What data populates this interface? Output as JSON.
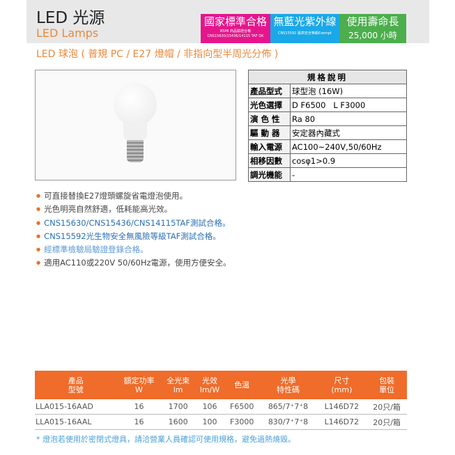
{
  "header": {
    "title": "LED 光源",
    "subtitle": "LED Lamps"
  },
  "badges": [
    {
      "title": "國家標準合格",
      "line1": "BSMI 商品驗證合格",
      "line2": "CNS15630/15436/14115 TAF OK",
      "color": "#e5168c"
    },
    {
      "title": "無藍光紫外線",
      "line1": "CNS15592 最高安全等級Exempt",
      "line2": "",
      "color": "#1aa8e8"
    },
    {
      "title": "使用壽命長",
      "line1": "25,000 小時",
      "line2": "",
      "color": "#4cae4c"
    }
  ],
  "product_subtitle": "LED 球泡 ( 普規 PC / E27 燈帽 / 非指向型半周光分佈 )",
  "spec": {
    "heading": "規格說明",
    "rows": [
      {
        "k": "產品型式",
        "v": "球型泡 (16W)"
      },
      {
        "k": "光色選擇",
        "v": "D F6500   L F3000"
      },
      {
        "k": "演 色 性",
        "v": "Ra 80"
      },
      {
        "k": "驅 動 器",
        "v": "安定器內藏式"
      },
      {
        "k": "輸入電源",
        "v": "AC100~240V,50/60Hz"
      },
      {
        "k": "相移因數",
        "v": "cosφ1>0.9"
      },
      {
        "k": "調光機能",
        "v": "-"
      }
    ]
  },
  "features": [
    "可直接替換E27燈頭螺旋省電燈泡使用。",
    "光色明亮自然舒適，低耗能高光效。",
    "CNS15630/CNS15436/CNS14115TAF測試合格。",
    "CNS15592光生物安全無風險等級TAF測試合格。",
    "經標準檢驗局驗證登錄合格。",
    "適用AC110或220V 50/60Hz電源，使用方便安全。"
  ],
  "table": {
    "headers": [
      [
        "產品",
        "型號"
      ],
      [
        "額定功率",
        "W"
      ],
      [
        "全光束",
        "lm"
      ],
      [
        "光效",
        "lm/W"
      ],
      [
        "色溫",
        ""
      ],
      [
        "光學",
        "特性碼"
      ],
      [
        "尺寸",
        "(mm)"
      ],
      [
        "包裝",
        "單位"
      ]
    ],
    "rows": [
      [
        "LLA015-16AAD",
        "16",
        "1700",
        "106",
        "F6500",
        "865/7⁺7⁺8",
        "L146D72",
        "20只/箱"
      ],
      [
        "LLA015-16AAL",
        "16",
        "1600",
        "100",
        "F3000",
        "830/7⁺7⁺8",
        "L146D72",
        "20只/箱"
      ]
    ]
  },
  "note": "* 燈泡若使用於密閉式燈具，請洽營業人員確認可使用規格，避免過熱燒毀。"
}
